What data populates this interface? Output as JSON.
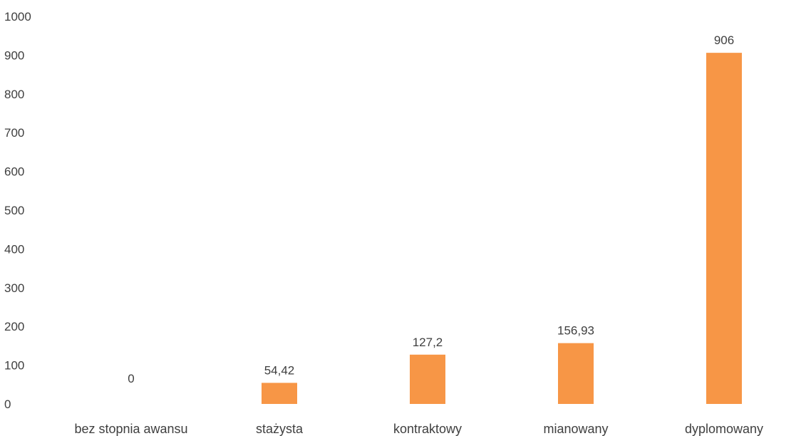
{
  "chart_data": {
    "type": "bar",
    "title": "",
    "xlabel": "",
    "ylabel": "",
    "categories": [
      "bez stopnia awansu",
      "stażysta",
      "kontraktowy",
      "mianowany",
      "dyplomowany"
    ],
    "values": [
      0,
      54.42,
      127.2,
      156.93,
      906
    ],
    "value_labels": [
      "0",
      "54,42",
      "127,2",
      "156,93",
      "906"
    ],
    "ylim": [
      0,
      1000
    ],
    "y_ticks": [
      "0",
      "100",
      "200",
      "300",
      "400",
      "500",
      "600",
      "700",
      "800",
      "900",
      "1000"
    ],
    "grid": false,
    "legend": "none",
    "bar_color": "#F79646"
  }
}
